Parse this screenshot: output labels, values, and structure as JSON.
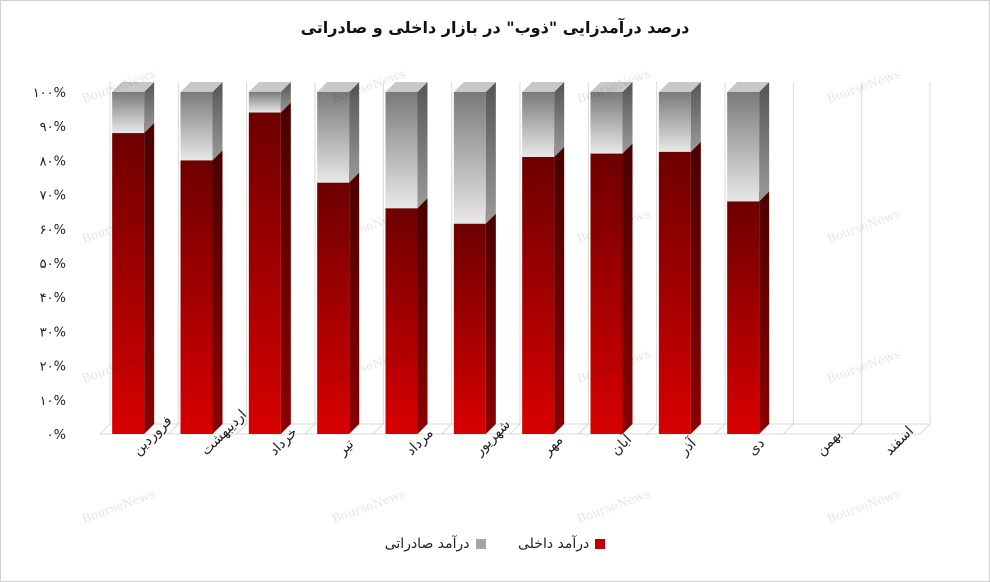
{
  "chart_data": {
    "type": "bar",
    "stacked": true,
    "title": "درصد درآمدزایی \"ذوب\" در بازار داخلی و صادراتی",
    "categories": [
      "فروردین",
      "اردیبهشت",
      "خرداد",
      "تیر",
      "مرداد",
      "شهریور",
      "مهر",
      "آبان",
      "آذر",
      "دی",
      "بهمن",
      "اسفند"
    ],
    "series": [
      {
        "name": "درآمد داخلی",
        "color": "#c00000",
        "values": [
          88,
          80,
          94,
          73.5,
          66,
          61.5,
          81,
          82,
          82.5,
          68,
          null,
          null
        ]
      },
      {
        "name": "درآمد صادراتی",
        "color": "#a6a6a6",
        "values": [
          12,
          20,
          6,
          26.5,
          34,
          38.5,
          19,
          18,
          17.5,
          32,
          null,
          null
        ]
      }
    ],
    "ylim": [
      0,
      100
    ],
    "yticks": [
      "۰%",
      "۱۰%",
      "۲۰%",
      "۳۰%",
      "۴۰%",
      "۵۰%",
      "۶۰%",
      "۷۰%",
      "۸۰%",
      "۹۰%",
      "۱۰۰%"
    ],
    "legend_position": "bottom",
    "grid": true,
    "watermark": "BourseNews"
  }
}
